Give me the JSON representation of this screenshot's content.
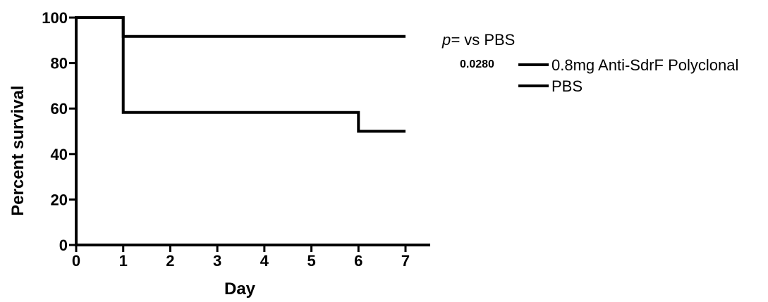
{
  "chart_data": {
    "type": "line",
    "step": true,
    "xlabel": "Day",
    "ylabel": "Percent survival",
    "xlim": [
      0,
      7
    ],
    "ylim": [
      0,
      100
    ],
    "x_ticks": [
      "0",
      "1",
      "2",
      "3",
      "4",
      "5",
      "6",
      "7"
    ],
    "y_ticks": [
      "0",
      "20",
      "40",
      "60",
      "80",
      "100"
    ],
    "legend_position": "right",
    "legend_header_p": "p=",
    "legend_header_rest": " vs PBS",
    "series": [
      {
        "name": "0.8mg Anti-SdrF Polyclonal",
        "p_value": "0.0280",
        "x": [
          0,
          1,
          7
        ],
        "y": [
          100,
          91.7,
          91.7
        ],
        "color": "#000000"
      },
      {
        "name": "PBS",
        "p_value": "",
        "x": [
          0,
          1,
          6,
          7
        ],
        "y": [
          100,
          58.3,
          50,
          50
        ],
        "color": "#000000"
      }
    ]
  }
}
